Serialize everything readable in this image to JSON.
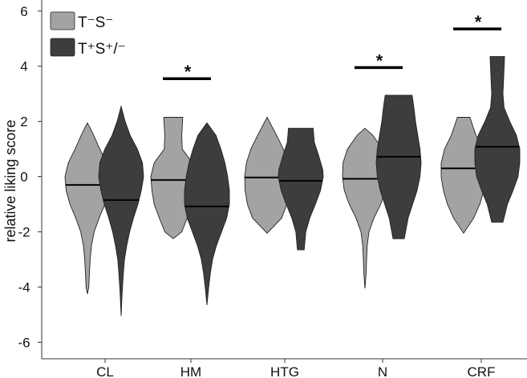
{
  "chart_data": {
    "type": "violin",
    "title": "",
    "xlabel": "",
    "ylabel": "relative liking score",
    "ylim": [
      -6.6,
      6.4
    ],
    "yticks": [
      6,
      4,
      2,
      0,
      -2,
      -4,
      -6
    ],
    "ytick_labels": [
      "6",
      "4",
      "2",
      "0",
      "-2",
      "-4",
      "-6"
    ],
    "grid": false,
    "legend_position": "top-left",
    "categories": [
      "CL",
      "HM",
      "HTG",
      "N",
      "CRF"
    ],
    "series": [
      {
        "name": "T⁻S⁻",
        "color": "#a3a3a3",
        "violins": [
          {
            "max": 1.95,
            "min": -4.25,
            "median": -0.3,
            "profile": [
              [
                1.95,
                0.0
              ],
              [
                1.6,
                0.22
              ],
              [
                1.0,
                0.55
              ],
              [
                0.5,
                0.85
              ],
              [
                0.0,
                1.0
              ],
              [
                -0.5,
                0.95
              ],
              [
                -1.0,
                0.78
              ],
              [
                -1.5,
                0.52
              ],
              [
                -2.0,
                0.3
              ],
              [
                -2.5,
                0.18
              ],
              [
                -3.0,
                0.12
              ],
              [
                -3.5,
                0.09
              ],
              [
                -4.0,
                0.06
              ],
              [
                -4.25,
                0.0
              ]
            ]
          },
          {
            "max": 2.15,
            "min": -2.25,
            "median": -0.12,
            "profile": [
              [
                2.15,
                0.42
              ],
              [
                1.5,
                0.38
              ],
              [
                1.0,
                0.4
              ],
              [
                0.5,
                0.85
              ],
              [
                0.0,
                1.0
              ],
              [
                -0.5,
                0.95
              ],
              [
                -1.0,
                0.85
              ],
              [
                -1.5,
                0.62
              ],
              [
                -2.0,
                0.38
              ],
              [
                -2.25,
                0.0
              ]
            ]
          },
          {
            "max": 2.15,
            "min": -2.05,
            "median": -0.03,
            "profile": [
              [
                2.15,
                0.0
              ],
              [
                1.5,
                0.42
              ],
              [
                1.0,
                0.72
              ],
              [
                0.5,
                0.92
              ],
              [
                0.0,
                1.0
              ],
              [
                -0.5,
                0.98
              ],
              [
                -1.0,
                0.88
              ],
              [
                -1.5,
                0.65
              ],
              [
                -2.05,
                0.0
              ]
            ]
          },
          {
            "max": 1.75,
            "min": -4.05,
            "median": -0.08,
            "profile": [
              [
                1.75,
                0.0
              ],
              [
                1.5,
                0.35
              ],
              [
                1.0,
                0.78
              ],
              [
                0.5,
                0.98
              ],
              [
                0.0,
                1.0
              ],
              [
                -0.5,
                0.92
              ],
              [
                -1.0,
                0.7
              ],
              [
                -1.5,
                0.4
              ],
              [
                -2.0,
                0.18
              ],
              [
                -2.5,
                0.1
              ],
              [
                -3.0,
                0.07
              ],
              [
                -3.5,
                0.05
              ],
              [
                -4.05,
                0.0
              ]
            ]
          },
          {
            "max": 2.15,
            "min": -2.05,
            "median": 0.3,
            "profile": [
              [
                2.15,
                0.28
              ],
              [
                1.5,
                0.55
              ],
              [
                1.0,
                0.85
              ],
              [
                0.5,
                1.0
              ],
              [
                0.0,
                1.0
              ],
              [
                -0.5,
                0.9
              ],
              [
                -1.0,
                0.72
              ],
              [
                -1.5,
                0.45
              ],
              [
                -2.05,
                0.0
              ]
            ]
          }
        ]
      },
      {
        "name": "T⁺S⁺/⁻",
        "color": "#3d3d3d",
        "violins": [
          {
            "max": 2.55,
            "min": -5.05,
            "median": -0.85,
            "profile": [
              [
                2.55,
                0.0
              ],
              [
                2.0,
                0.18
              ],
              [
                1.5,
                0.4
              ],
              [
                1.0,
                0.72
              ],
              [
                0.5,
                0.95
              ],
              [
                0.0,
                1.0
              ],
              [
                -0.5,
                0.9
              ],
              [
                -1.0,
                0.75
              ],
              [
                -1.5,
                0.55
              ],
              [
                -2.0,
                0.38
              ],
              [
                -2.5,
                0.25
              ],
              [
                -3.0,
                0.15
              ],
              [
                -3.5,
                0.1
              ],
              [
                -4.0,
                0.06
              ],
              [
                -4.5,
                0.03
              ],
              [
                -5.05,
                0.0
              ]
            ]
          },
          {
            "max": 1.95,
            "min": -4.65,
            "median": -1.08,
            "profile": [
              [
                1.95,
                0.0
              ],
              [
                1.5,
                0.4
              ],
              [
                1.0,
                0.62
              ],
              [
                0.5,
                0.8
              ],
              [
                0.0,
                0.92
              ],
              [
                -0.5,
                1.0
              ],
              [
                -1.0,
                1.0
              ],
              [
                -1.5,
                0.88
              ],
              [
                -2.0,
                0.65
              ],
              [
                -2.5,
                0.42
              ],
              [
                -3.0,
                0.25
              ],
              [
                -3.5,
                0.15
              ],
              [
                -4.0,
                0.08
              ],
              [
                -4.65,
                0.0
              ]
            ]
          },
          {
            "max": 1.75,
            "min": -2.65,
            "median": -0.15,
            "profile": [
              [
                1.75,
                0.55
              ],
              [
                1.25,
                0.6
              ],
              [
                0.75,
                0.8
              ],
              [
                0.25,
                0.98
              ],
              [
                0.0,
                1.0
              ],
              [
                -0.5,
                0.88
              ],
              [
                -1.0,
                0.65
              ],
              [
                -1.5,
                0.4
              ],
              [
                -2.0,
                0.22
              ],
              [
                -2.65,
                0.15
              ]
            ]
          },
          {
            "max": 2.95,
            "min": -2.25,
            "median": 0.72,
            "profile": [
              [
                2.95,
                0.6
              ],
              [
                2.5,
                0.68
              ],
              [
                2.0,
                0.75
              ],
              [
                1.5,
                0.85
              ],
              [
                1.0,
                0.95
              ],
              [
                0.5,
                1.0
              ],
              [
                0.0,
                0.95
              ],
              [
                -0.5,
                0.82
              ],
              [
                -1.0,
                0.62
              ],
              [
                -1.5,
                0.42
              ],
              [
                -2.25,
                0.25
              ]
            ]
          },
          {
            "max": 4.35,
            "min": -1.65,
            "median": 1.08,
            "profile": [
              [
                4.35,
                0.32
              ],
              [
                3.5,
                0.28
              ],
              [
                3.0,
                0.25
              ],
              [
                2.5,
                0.3
              ],
              [
                2.0,
                0.55
              ],
              [
                1.5,
                0.85
              ],
              [
                1.0,
                1.0
              ],
              [
                0.5,
                1.0
              ],
              [
                0.0,
                0.92
              ],
              [
                -0.5,
                0.7
              ],
              [
                -1.0,
                0.45
              ],
              [
                -1.65,
                0.25
              ]
            ]
          }
        ]
      }
    ],
    "significance": [
      {
        "category": "HM",
        "y": 3.55,
        "label": "*"
      },
      {
        "category": "N",
        "y": 3.95,
        "label": "*"
      },
      {
        "category": "CRF",
        "y": 5.35,
        "label": "*"
      }
    ]
  }
}
